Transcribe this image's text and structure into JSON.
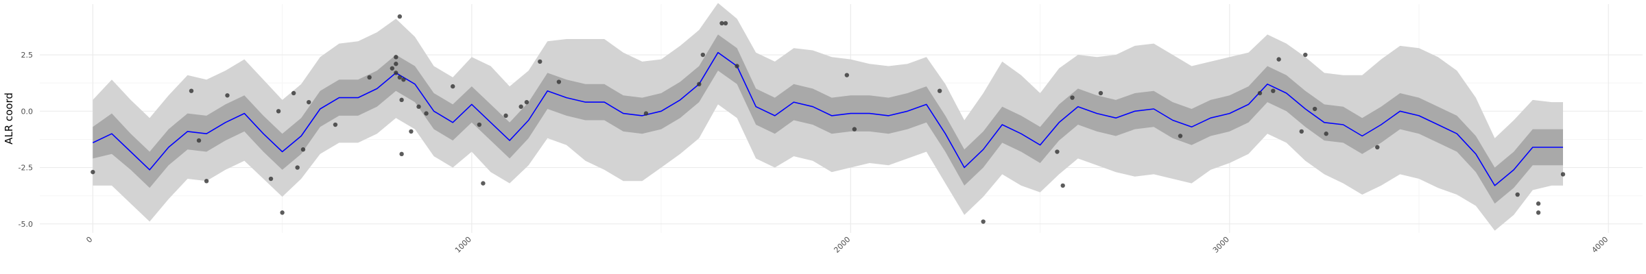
{
  "chart_data": {
    "type": "line",
    "title": "",
    "xlabel": "",
    "ylabel": "ALR coord",
    "xlim": [
      -140,
      4090
    ],
    "ylim": [
      -5.4,
      4.75
    ],
    "x_ticks": [
      0,
      1000,
      2000,
      3000,
      4000
    ],
    "x_tick_labels": [
      "0",
      "1000",
      "2000",
      "3000",
      "4000"
    ],
    "y_ticks": [
      -5.0,
      -2.5,
      0.0,
      2.5
    ],
    "y_tick_labels": [
      "-5.0",
      "-2.5",
      "0.0",
      "2.5"
    ],
    "grid": true,
    "legend": "none",
    "colors": {
      "mean_line": "#0000ff",
      "inner_band": "#a9a9a9",
      "outer_band": "#d3d3d3",
      "points": "#333333",
      "grid_major": "#ebebeb",
      "grid_minor": "#f5f5f5"
    },
    "series": [
      {
        "type": "line",
        "x": [
          0,
          50,
          100,
          150,
          200,
          250,
          300,
          350,
          400,
          450,
          500,
          550,
          600,
          650,
          700,
          750,
          800,
          850,
          900,
          950,
          1000,
          1050,
          1100,
          1150,
          1200,
          1250,
          1300,
          1350,
          1400,
          1450,
          1500,
          1550,
          1600,
          1650,
          1700,
          1750,
          1800,
          1850,
          1900,
          1950,
          2000,
          2050,
          2100,
          2150,
          2200,
          2250,
          2300,
          2350,
          2400,
          2450,
          2500,
          2550,
          2600,
          2650,
          2700,
          2750,
          2800,
          2850,
          2900,
          2950,
          3000,
          3050,
          3100,
          3150,
          3200,
          3250,
          3300,
          3350,
          3400,
          3450,
          3500,
          3550,
          3600,
          3650,
          3700,
          3750,
          3800,
          3850,
          3880
        ],
        "y": [
          -1.4,
          -1.0,
          -1.8,
          -2.6,
          -1.6,
          -0.9,
          -1.0,
          -0.5,
          -0.1,
          -1.0,
          -1.8,
          -1.1,
          0.1,
          0.6,
          0.6,
          1.0,
          1.7,
          1.2,
          0.0,
          -0.5,
          0.3,
          -0.5,
          -1.3,
          -0.4,
          0.9,
          0.6,
          0.4,
          0.4,
          -0.1,
          -0.2,
          0.0,
          0.5,
          1.2,
          2.6,
          2.0,
          0.2,
          -0.2,
          0.4,
          0.2,
          -0.2,
          -0.1,
          -0.1,
          -0.2,
          0.0,
          0.3,
          -1.0,
          -2.5,
          -1.7,
          -0.6,
          -1.0,
          -1.5,
          -0.5,
          0.2,
          -0.1,
          -0.3,
          0.0,
          0.1,
          -0.4,
          -0.7,
          -0.3,
          -0.1,
          0.3,
          1.2,
          0.8,
          0.1,
          -0.5,
          -0.6,
          -1.1,
          -0.6,
          0.0,
          -0.2,
          -0.6,
          -1.0,
          -1.9,
          -3.3,
          -2.6,
          -1.6,
          -1.6,
          -1.6
        ]
      },
      {
        "type": "band_inner",
        "x": [
          0,
          50,
          100,
          150,
          200,
          250,
          300,
          350,
          400,
          450,
          500,
          550,
          600,
          650,
          700,
          750,
          800,
          850,
          900,
          950,
          1000,
          1050,
          1100,
          1150,
          1200,
          1250,
          1300,
          1350,
          1400,
          1450,
          1500,
          1550,
          1600,
          1650,
          1700,
          1750,
          1800,
          1850,
          1900,
          1950,
          2000,
          2050,
          2100,
          2150,
          2200,
          2250,
          2300,
          2350,
          2400,
          2450,
          2500,
          2550,
          2600,
          2650,
          2700,
          2750,
          2800,
          2850,
          2900,
          2950,
          3000,
          3050,
          3100,
          3150,
          3200,
          3250,
          3300,
          3350,
          3400,
          3450,
          3500,
          3550,
          3600,
          3650,
          3700,
          3750,
          3800,
          3850,
          3880
        ],
        "lower": [
          -2.1,
          -1.9,
          -2.6,
          -3.4,
          -2.4,
          -1.7,
          -1.8,
          -1.3,
          -0.9,
          -1.8,
          -2.6,
          -1.9,
          -0.7,
          -0.2,
          -0.2,
          0.2,
          0.9,
          0.4,
          -0.8,
          -1.3,
          -0.5,
          -1.3,
          -2.1,
          -1.2,
          0.1,
          -0.2,
          -0.4,
          -0.4,
          -0.9,
          -1.0,
          -0.8,
          -0.3,
          0.4,
          1.8,
          1.2,
          -0.6,
          -1.0,
          -0.4,
          -0.6,
          -1.0,
          -0.9,
          -0.9,
          -1.0,
          -0.8,
          -0.5,
          -1.8,
          -3.3,
          -2.5,
          -1.4,
          -1.8,
          -2.3,
          -1.3,
          -0.6,
          -0.9,
          -1.1,
          -0.8,
          -0.7,
          -1.2,
          -1.5,
          -1.1,
          -0.9,
          -0.5,
          0.4,
          0.0,
          -0.7,
          -1.3,
          -1.4,
          -1.9,
          -1.4,
          -0.8,
          -1.0,
          -1.4,
          -1.8,
          -2.7,
          -4.1,
          -3.4,
          -2.4,
          -2.4,
          -2.4
        ],
        "upper": [
          -0.7,
          -0.1,
          -1.0,
          -1.8,
          -0.8,
          -0.1,
          -0.2,
          0.3,
          0.7,
          -0.2,
          -1.0,
          -0.3,
          0.9,
          1.4,
          1.4,
          1.8,
          2.5,
          2.0,
          0.8,
          0.3,
          1.1,
          0.3,
          -0.5,
          0.4,
          1.7,
          1.4,
          1.2,
          1.2,
          0.7,
          0.6,
          0.8,
          1.3,
          2.0,
          3.4,
          2.8,
          1.0,
          0.6,
          1.2,
          1.0,
          0.6,
          0.7,
          0.7,
          0.6,
          0.8,
          1.1,
          -0.2,
          -1.7,
          -0.9,
          0.2,
          -0.2,
          -0.7,
          0.3,
          1.0,
          0.7,
          0.5,
          0.8,
          0.9,
          0.4,
          0.1,
          0.5,
          0.7,
          1.1,
          2.0,
          1.6,
          0.9,
          0.3,
          0.2,
          -0.3,
          0.2,
          0.8,
          0.6,
          0.2,
          -0.2,
          -1.1,
          -2.5,
          -1.8,
          -0.8,
          -0.8,
          -0.8
        ]
      },
      {
        "type": "band_outer",
        "x": [
          0,
          50,
          100,
          150,
          200,
          250,
          300,
          350,
          400,
          450,
          500,
          550,
          600,
          650,
          700,
          750,
          800,
          850,
          900,
          950,
          1000,
          1050,
          1100,
          1150,
          1200,
          1250,
          1300,
          1350,
          1400,
          1450,
          1500,
          1550,
          1600,
          1650,
          1700,
          1750,
          1800,
          1850,
          1900,
          1950,
          2000,
          2050,
          2100,
          2150,
          2200,
          2250,
          2300,
          2350,
          2400,
          2450,
          2500,
          2550,
          2600,
          2650,
          2700,
          2750,
          2800,
          2850,
          2900,
          2950,
          3000,
          3050,
          3100,
          3150,
          3200,
          3250,
          3300,
          3350,
          3400,
          3450,
          3500,
          3550,
          3600,
          3650,
          3700,
          3750,
          3800,
          3850,
          3880
        ],
        "lower": [
          -3.3,
          -3.3,
          -4.1,
          -4.9,
          -3.9,
          -3.0,
          -3.1,
          -2.6,
          -2.2,
          -3.0,
          -3.8,
          -3.0,
          -1.9,
          -1.4,
          -1.4,
          -1.0,
          -0.3,
          -0.8,
          -2.0,
          -2.5,
          -1.8,
          -2.7,
          -3.2,
          -2.4,
          -1.2,
          -1.5,
          -2.2,
          -2.6,
          -3.1,
          -3.1,
          -2.5,
          -1.9,
          -1.2,
          0.3,
          -0.3,
          -2.1,
          -2.5,
          -2.0,
          -2.2,
          -2.7,
          -2.5,
          -2.3,
          -2.4,
          -2.1,
          -1.8,
          -3.2,
          -4.6,
          -3.8,
          -2.8,
          -3.3,
          -3.6,
          -2.8,
          -2.1,
          -2.4,
          -2.7,
          -2.9,
          -2.8,
          -3.0,
          -3.2,
          -2.6,
          -2.3,
          -1.9,
          -1.0,
          -1.4,
          -2.2,
          -2.8,
          -3.2,
          -3.7,
          -3.3,
          -2.8,
          -3.0,
          -3.4,
          -3.7,
          -4.2,
          -5.3,
          -4.6,
          -3.5,
          -3.3,
          -3.3
        ],
        "upper": [
          0.5,
          1.4,
          0.5,
          -0.3,
          0.7,
          1.6,
          1.4,
          1.8,
          2.3,
          1.4,
          0.5,
          1.2,
          2.4,
          3.0,
          3.1,
          3.5,
          4.1,
          3.3,
          2.0,
          1.5,
          2.4,
          2.0,
          1.1,
          1.8,
          3.1,
          3.2,
          3.2,
          3.2,
          2.6,
          2.2,
          2.3,
          2.9,
          3.6,
          4.8,
          4.1,
          2.6,
          2.2,
          2.8,
          2.7,
          2.4,
          2.3,
          2.1,
          2.0,
          2.1,
          2.4,
          1.2,
          -0.4,
          0.8,
          2.2,
          1.6,
          0.8,
          1.9,
          2.5,
          2.4,
          2.5,
          2.9,
          3.0,
          2.5,
          2.0,
          2.2,
          2.4,
          2.6,
          3.4,
          3.0,
          2.4,
          1.7,
          1.6,
          1.6,
          2.3,
          2.9,
          2.8,
          2.4,
          1.8,
          0.6,
          -1.2,
          -0.4,
          0.5,
          0.4,
          0.4
        ]
      },
      {
        "type": "points",
        "x": [
          0,
          260,
          280,
          300,
          355,
          470,
          490,
          500,
          530,
          540,
          555,
          570,
          640,
          730,
          790,
          800,
          800,
          800,
          810,
          810,
          815,
          815,
          820,
          840,
          860,
          880,
          950,
          1020,
          1030,
          1090,
          1130,
          1145,
          1180,
          1230,
          1460,
          1600,
          1610,
          1660,
          1670,
          1700,
          1990,
          2010,
          2235,
          2350,
          2545,
          2560,
          2585,
          2660,
          2870,
          3080,
          3115,
          3130,
          3190,
          3200,
          3225,
          3255,
          3390,
          3760,
          3815,
          3815,
          3880
        ],
        "y": [
          -2.7,
          0.9,
          -1.3,
          -3.1,
          0.7,
          -3.0,
          0.0,
          -4.5,
          0.8,
          -2.5,
          -1.7,
          0.4,
          -0.6,
          1.5,
          1.9,
          2.4,
          2.1,
          1.7,
          1.5,
          4.2,
          0.5,
          -1.9,
          1.4,
          -0.9,
          0.2,
          -0.1,
          1.1,
          -0.6,
          -3.2,
          -0.2,
          0.2,
          0.4,
          2.2,
          1.3,
          -0.1,
          1.2,
          2.5,
          3.9,
          3.9,
          2.0,
          1.6,
          -0.8,
          0.9,
          -4.9,
          -1.8,
          -3.3,
          0.6,
          0.8,
          -1.1,
          0.8,
          0.9,
          2.3,
          -0.9,
          2.5,
          0.1,
          -1.0,
          -1.6,
          -3.7,
          -4.1,
          -4.5,
          -2.8
        ]
      }
    ]
  }
}
